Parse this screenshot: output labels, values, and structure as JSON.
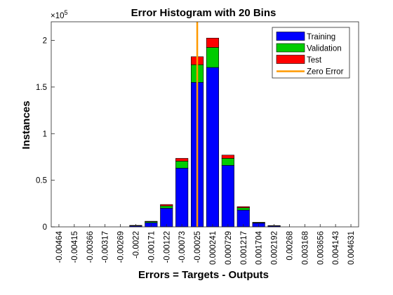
{
  "chart_data": {
    "type": "bar",
    "stacked": true,
    "title": "Error Histogram with 20 Bins",
    "xlabel": "Errors = Targets - Outputs",
    "ylabel": "Instances",
    "y_exponent_label": "×10",
    "y_exponent_power": "5",
    "y_scale": 100000,
    "ylim": [
      0,
      220000
    ],
    "yticks": [
      0,
      50000,
      100000,
      150000,
      200000
    ],
    "ytick_labels": [
      "0",
      "0.5",
      "1",
      "1.5",
      "2"
    ],
    "categories": [
      "-0.00464",
      "-0.00415",
      "-0.00366",
      "-0.00317",
      "-0.00269",
      "-0.0022",
      "-0.00171",
      "-0.00122",
      "-0.00073",
      "-0.00025",
      "0.000241",
      "0.000729",
      "0.001217",
      "0.001704",
      "0.002192",
      "0.00268",
      "0.003168",
      "0.003656",
      "0.004143",
      "0.004631"
    ],
    "series": [
      {
        "name": "Training",
        "color": "#0000ff",
        "values": [
          0,
          0,
          0,
          0,
          0,
          1000,
          4500,
          20000,
          63000,
          155000,
          171000,
          66000,
          18000,
          4000,
          1000,
          0,
          0,
          0,
          0,
          0
        ]
      },
      {
        "name": "Validation",
        "color": "#00cc00",
        "values": [
          0,
          0,
          0,
          0,
          0,
          300,
          1000,
          2500,
          7500,
          19000,
          21500,
          7500,
          2500,
          600,
          200,
          0,
          0,
          0,
          0,
          0
        ]
      },
      {
        "name": "Test",
        "color": "#ff0000",
        "values": [
          0,
          0,
          0,
          0,
          0,
          300,
          500,
          1500,
          3000,
          8500,
          10000,
          3500,
          1200,
          300,
          200,
          0,
          0,
          0,
          0,
          0
        ]
      }
    ],
    "zero_error": {
      "name": "Zero Error",
      "color": "#ff9900",
      "x_position_bin": 9.5
    },
    "legend_position": "top-right",
    "grid": false
  }
}
